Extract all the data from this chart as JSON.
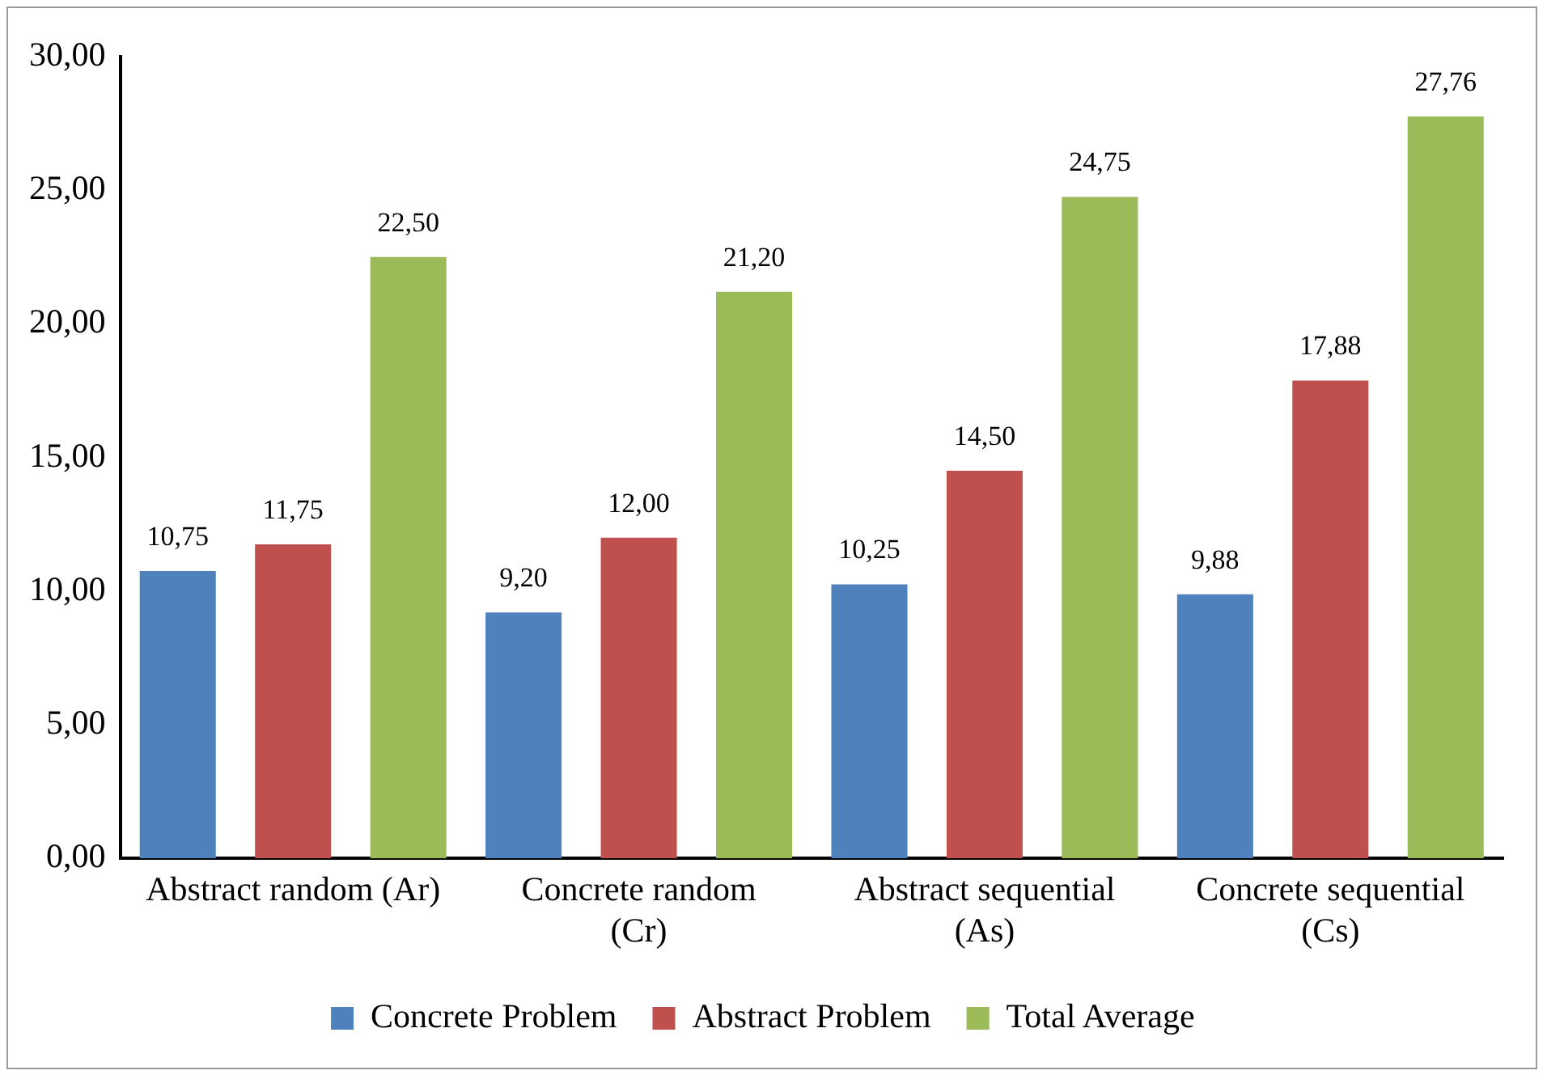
{
  "chart_data": {
    "type": "bar",
    "categories": [
      "Abstract random (Ar)",
      "Concrete random (Cr)",
      "Abstract sequential (As)",
      "Concrete sequential (Cs)"
    ],
    "series": [
      {
        "name": "Concrete Problem",
        "color": "#4f81bd",
        "values": [
          10.75,
          9.2,
          10.25,
          9.88
        ],
        "value_labels": [
          "10,75",
          "9,20",
          "10,25",
          "9,88"
        ]
      },
      {
        "name": "Abstract Problem",
        "color": "#c0504d",
        "values": [
          11.75,
          12.0,
          14.5,
          17.88
        ],
        "value_labels": [
          "11,75",
          "12,00",
          "14,50",
          "17,88"
        ]
      },
      {
        "name": "Total Average",
        "color": "#9bbb59",
        "values": [
          22.5,
          21.2,
          24.75,
          27.76
        ],
        "value_labels": [
          "22,50",
          "21,20",
          "24,75",
          "27,76"
        ]
      }
    ],
    "ylim": [
      0,
      30
    ],
    "yticks": [
      {
        "value": 0,
        "label": "0,00"
      },
      {
        "value": 5,
        "label": "5,00"
      },
      {
        "value": 10,
        "label": "10,00"
      },
      {
        "value": 15,
        "label": "15,00"
      },
      {
        "value": 20,
        "label": "20,00"
      },
      {
        "value": 25,
        "label": "25,00"
      },
      {
        "value": 30,
        "label": "30,00"
      }
    ],
    "grid": false,
    "legend": "bottom"
  }
}
